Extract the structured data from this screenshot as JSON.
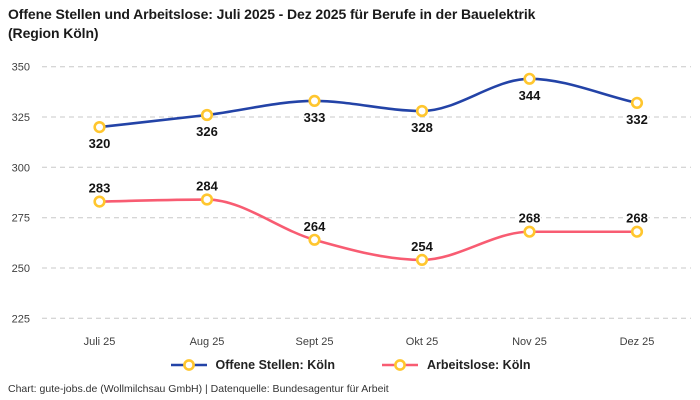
{
  "header": {
    "title_line1": "Offene Stellen und Arbeitslose: Juli 2025 - Dez 2025 für Berufe in der Bauelektrik",
    "title_line2": "(Region Köln)"
  },
  "footer": {
    "credit": "Chart: gute-jobs.de (Wollmilchsau GmbH) | Datenquelle: Bundesagentur für Arbeit"
  },
  "colors": {
    "background": "#ffffff",
    "title_text": "#1a1a1a",
    "axis_text": "#3f3f3f",
    "grid": "#c8c8c8",
    "data_label_text": "#141414",
    "legend_text": "#222222",
    "footer_text": "#333333",
    "series_open_positions": "#2343a7",
    "series_unemployed": "#f85c72",
    "marker_stroke": "#ffc62e",
    "marker_fill": "#ffffff"
  },
  "chart_data": {
    "type": "line",
    "title": "Offene Stellen und Arbeitslose: Juli 2025 - Dez 2025 für Berufe in der Bauelektrik (Region Köln)",
    "categories": [
      "Juli 25",
      "Aug 25",
      "Sept 25",
      "Okt 25",
      "Nov 25",
      "Dez 25"
    ],
    "series": [
      {
        "name": "Offene Stellen: Köln",
        "color": "#2343a7",
        "values": [
          320,
          326,
          333,
          328,
          344,
          332
        ]
      },
      {
        "name": "Arbeitslose: Köln",
        "color": "#f85c72",
        "values": [
          283,
          284,
          264,
          254,
          268,
          268
        ]
      }
    ],
    "ylim": [
      225,
      350
    ],
    "yticks": [
      225,
      250,
      275,
      300,
      325,
      350
    ],
    "grid": "horizontal-dashed",
    "legend_position": "bottom",
    "marker": {
      "shape": "circle",
      "fill": "#ffffff",
      "stroke": "#ffc62e"
    },
    "interpolation": "monotone"
  }
}
